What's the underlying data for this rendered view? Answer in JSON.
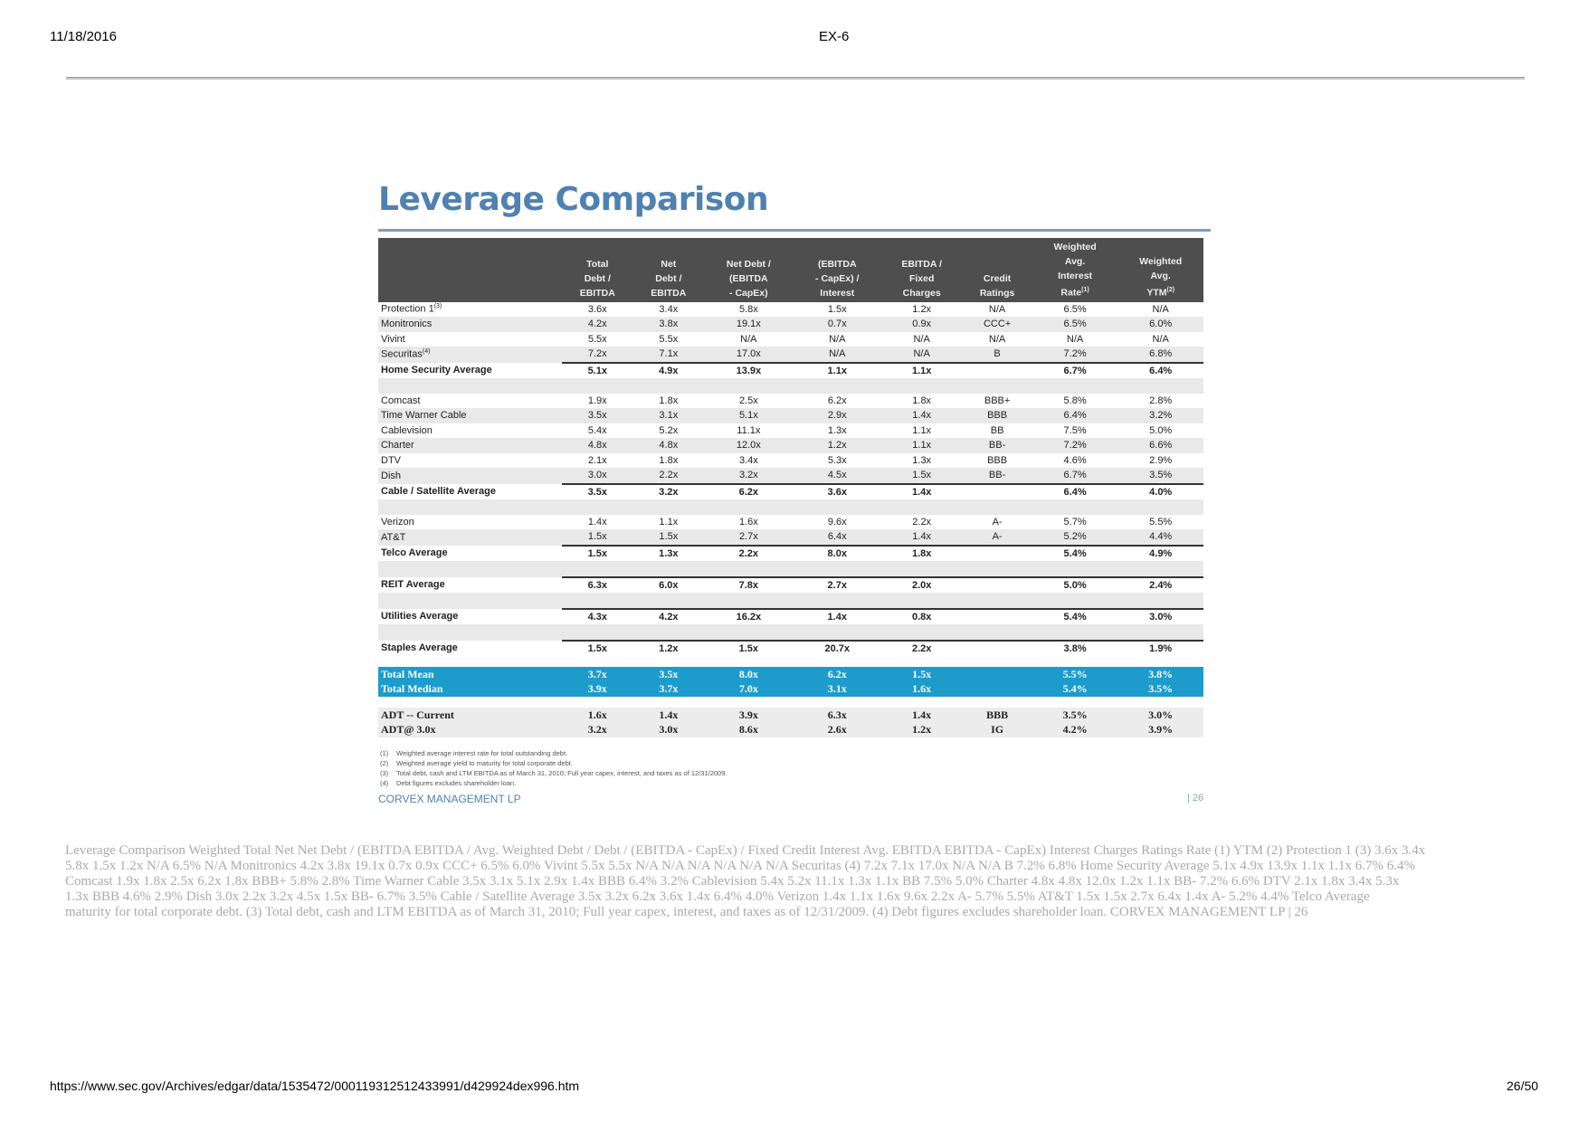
{
  "page_header": {
    "date": "11/18/2016",
    "doc_title": "EX-6"
  },
  "slide": {
    "title": "Leverage Comparison",
    "headers": [
      {
        "lines": [
          ""
        ]
      },
      {
        "lines": [
          "Total",
          "Debt /",
          "EBITDA"
        ]
      },
      {
        "lines": [
          "Net",
          "Debt /",
          "EBITDA"
        ]
      },
      {
        "lines": [
          "Net Debt /",
          "(EBITDA",
          "- CapEx)"
        ]
      },
      {
        "lines": [
          "(EBITDA",
          "- CapEx) /",
          "Interest"
        ]
      },
      {
        "lines": [
          "EBITDA /",
          "Fixed",
          "Charges"
        ]
      },
      {
        "lines": [
          "Credit",
          "Ratings"
        ]
      },
      {
        "lines": [
          "Weighted",
          "Avg.",
          "Interest",
          "Rate"
        ],
        "sup": "(1)"
      },
      {
        "lines": [
          "Weighted",
          "Avg.",
          "YTM"
        ],
        "sup": "(2)"
      }
    ],
    "rows": [
      {
        "type": "data",
        "label": "Protection 1",
        "sup": "(3)",
        "cells": [
          "3.6x",
          "3.4x",
          "5.8x",
          "1.5x",
          "1.2x",
          "N/A",
          "6.5%",
          "N/A"
        ]
      },
      {
        "type": "data",
        "label": "Monitronics",
        "cells": [
          "4.2x",
          "3.8x",
          "19.1x",
          "0.7x",
          "0.9x",
          "CCC+",
          "6.5%",
          "6.0%"
        ]
      },
      {
        "type": "data",
        "label": "Vivint",
        "cells": [
          "5.5x",
          "5.5x",
          "N/A",
          "N/A",
          "N/A",
          "N/A",
          "N/A",
          "N/A"
        ]
      },
      {
        "type": "data",
        "label": "Securitas",
        "sup": "(4)",
        "cells": [
          "7.2x",
          "7.1x",
          "17.0x",
          "N/A",
          "N/A",
          "B",
          "7.2%",
          "6.8%"
        ]
      },
      {
        "type": "avg",
        "label": "Home Security Average",
        "cells": [
          "5.1x",
          "4.9x",
          "13.9x",
          "1.1x",
          "1.1x",
          "",
          "6.7%",
          "6.4%"
        ]
      },
      {
        "type": "blank"
      },
      {
        "type": "data",
        "label": "Comcast",
        "cells": [
          "1.9x",
          "1.8x",
          "2.5x",
          "6.2x",
          "1.8x",
          "BBB+",
          "5.8%",
          "2.8%"
        ]
      },
      {
        "type": "data",
        "label": "Time Warner Cable",
        "cells": [
          "3.5x",
          "3.1x",
          "5.1x",
          "2.9x",
          "1.4x",
          "BBB",
          "6.4%",
          "3.2%"
        ]
      },
      {
        "type": "data",
        "label": "Cablevision",
        "cells": [
          "5.4x",
          "5.2x",
          "11.1x",
          "1.3x",
          "1.1x",
          "BB",
          "7.5%",
          "5.0%"
        ]
      },
      {
        "type": "data",
        "label": "Charter",
        "cells": [
          "4.8x",
          "4.8x",
          "12.0x",
          "1.2x",
          "1.1x",
          "BB-",
          "7.2%",
          "6.6%"
        ]
      },
      {
        "type": "data",
        "label": "DTV",
        "cells": [
          "2.1x",
          "1.8x",
          "3.4x",
          "5.3x",
          "1.3x",
          "BBB",
          "4.6%",
          "2.9%"
        ]
      },
      {
        "type": "data",
        "label": "Dish",
        "cells": [
          "3.0x",
          "2.2x",
          "3.2x",
          "4.5x",
          "1.5x",
          "BB-",
          "6.7%",
          "3.5%"
        ]
      },
      {
        "type": "avg",
        "label": "Cable / Satellite Average",
        "cells": [
          "3.5x",
          "3.2x",
          "6.2x",
          "3.6x",
          "1.4x",
          "",
          "6.4%",
          "4.0%"
        ]
      },
      {
        "type": "blank"
      },
      {
        "type": "data",
        "label": "Verizon",
        "cells": [
          "1.4x",
          "1.1x",
          "1.6x",
          "9.6x",
          "2.2x",
          "A-",
          "5.7%",
          "5.5%"
        ]
      },
      {
        "type": "data",
        "label": "AT&T",
        "cells": [
          "1.5x",
          "1.5x",
          "2.7x",
          "6.4x",
          "1.4x",
          "A-",
          "5.2%",
          "4.4%"
        ]
      },
      {
        "type": "avg",
        "label": "Telco Average",
        "cells": [
          "1.5x",
          "1.3x",
          "2.2x",
          "8.0x",
          "1.8x",
          "",
          "5.4%",
          "4.9%"
        ]
      },
      {
        "type": "blank"
      },
      {
        "type": "avg",
        "label": "REIT Average",
        "cells": [
          "6.3x",
          "6.0x",
          "7.8x",
          "2.7x",
          "2.0x",
          "",
          "5.0%",
          "2.4%"
        ]
      },
      {
        "type": "blank"
      },
      {
        "type": "avg",
        "label": "Utilities Average",
        "cells": [
          "4.3x",
          "4.2x",
          "16.2x",
          "1.4x",
          "0.8x",
          "",
          "5.4%",
          "3.0%"
        ]
      },
      {
        "type": "blank"
      },
      {
        "type": "avg",
        "label": "Staples Average",
        "cells": [
          "1.5x",
          "1.2x",
          "1.5x",
          "20.7x",
          "2.2x",
          "",
          "3.8%",
          "1.9%"
        ]
      },
      {
        "type": "gap"
      },
      {
        "type": "total",
        "label": "Total Mean",
        "cells": [
          "3.7x",
          "3.5x",
          "8.0x",
          "6.2x",
          "1.5x",
          "",
          "5.5%",
          "3.8%"
        ]
      },
      {
        "type": "total",
        "label": "Total Median",
        "cells": [
          "3.9x",
          "3.7x",
          "7.0x",
          "3.1x",
          "1.6x",
          "",
          "5.4%",
          "3.5%"
        ]
      },
      {
        "type": "gap"
      },
      {
        "type": "adt",
        "label": "ADT -- Current",
        "cells": [
          "1.6x",
          "1.4x",
          "3.9x",
          "6.3x",
          "1.4x",
          "BBB",
          "3.5%",
          "3.0%"
        ]
      },
      {
        "type": "adt",
        "label": "ADT@ 3.0x",
        "cells": [
          "3.2x",
          "3.0x",
          "8.6x",
          "2.6x",
          "1.2x",
          "IG",
          "4.2%",
          "3.9%"
        ]
      }
    ],
    "footnotes": [
      {
        "num": "(1)",
        "text": "Weighted average interest rate for total outstanding debt."
      },
      {
        "num": "(2)",
        "text": "Weighted average yield to maturity for total corporate debt."
      },
      {
        "num": "(3)",
        "text": "Total debt, cash and LTM EBITDA as of March 31, 2010; Full year capex, interest, and taxes as of 12/31/2009."
      },
      {
        "num": "(4)",
        "text": "Debt figures excludes shareholder loan."
      }
    ],
    "company": "CORVEX MANAGEMENT LP",
    "page_number": "| 26"
  },
  "ocr_text": [
    "Leverage Comparison Weighted Total Net Net Debt / (EBITDA EBITDA / Avg. Weighted Debt / Debt / (EBITDA - CapEx) / Fixed Credit Interest Avg. EBITDA EBITDA - CapEx) Interest Charges Ratings Rate (1) YTM (2) Protection 1 (3) 3.6x 3.4x",
    "5.8x 1.5x 1.2x N/A 6.5% N/A Monitronics 4.2x 3.8x 19.1x 0.7x 0.9x CCC+ 6.5% 6.0% Vivint 5.5x 5.5x N/A N/A N/A N/A N/A N/A Securitas (4) 7.2x 7.1x 17.0x N/A N/A B 7.2% 6.8% Home Security Average 5.1x 4.9x 13.9x 1.1x 1.1x 6.7% 6.4%",
    "Comcast 1.9x 1.8x 2.5x 6.2x 1.8x BBB+ 5.8% 2.8% Time Warner Cable 3.5x 3.1x 5.1x 2.9x 1.4x BBB 6.4% 3.2% Cablevision 5.4x 5.2x 11.1x 1.3x 1.1x BB 7.5% 5.0% Charter 4.8x 4.8x 12.0x 1.2x 1.1x BB- 7.2% 6.6% DTV 2.1x 1.8x 3.4x 5.3x",
    "1.3x BBB 4.6% 2.9% Dish 3.0x 2.2x 3.2x 4.5x 1.5x BB- 6.7% 3.5% Cable / Satellite Average 3.5x 3.2x 6.2x 3.6x 1.4x 6.4% 4.0% Verizon 1.4x 1.1x 1.6x 9.6x 2.2x A- 5.7% 5.5% AT&T 1.5x 1.5x 2.7x 6.4x 1.4x A- 5.2% 4.4% Telco Average",
    "maturity for total corporate debt. (3) Total debt, cash and LTM EBITDA as of March 31, 2010; Full year capex, interest, and taxes as of 12/31/2009. (4) Debt figures excludes shareholder loan. CORVEX MANAGEMENT LP | 26"
  ],
  "page_footer": {
    "url": "https://www.sec.gov/Archives/edgar/data/1535472/000119312512433991/d429924dex996.htm",
    "page_count": "26/50"
  }
}
